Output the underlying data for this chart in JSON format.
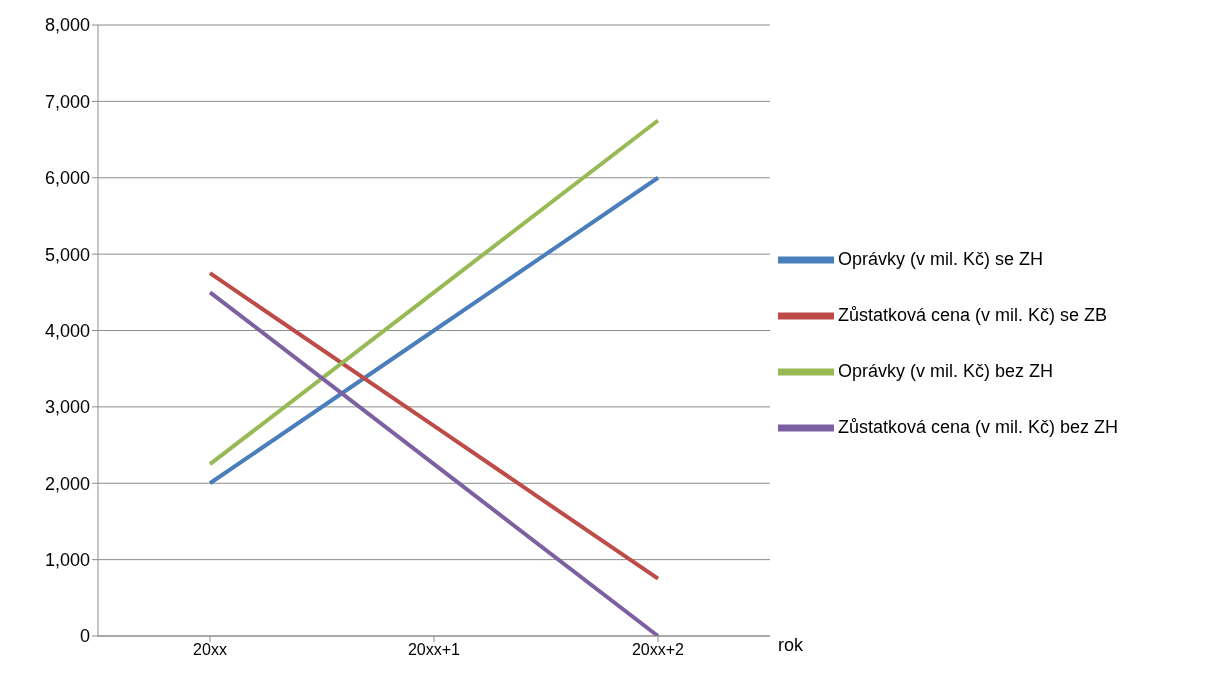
{
  "chart_data": {
    "type": "line",
    "xlabel": "rok",
    "categories": [
      "20xx",
      "20xx+1",
      "20xx+2"
    ],
    "series": [
      {
        "name": "Oprávky (v mil. Kč) se ZH",
        "color": "#4a7ebb",
        "values": [
          2000,
          4000,
          6000
        ]
      },
      {
        "name": "Zůstatková cena (v mil. Kč) se ZB",
        "color": "#be4b48",
        "values": [
          4750,
          2750,
          750
        ]
      },
      {
        "name": "Oprávky (v mil. Kč) bez ZH",
        "color": "#98b954",
        "values": [
          2250,
          4500,
          6750
        ]
      },
      {
        "name": "Zůstatková cena (v mil. Kč) bez ZH",
        "color": "#7d60a0",
        "values": [
          4500,
          2250,
          0
        ]
      }
    ],
    "ylim": [
      0,
      8000
    ],
    "yticks": [
      {
        "value": 0,
        "label": "0"
      },
      {
        "value": 1000,
        "label": "1,000"
      },
      {
        "value": 2000,
        "label": "2,000"
      },
      {
        "value": 3000,
        "label": "3,000"
      },
      {
        "value": 4000,
        "label": "4,000"
      },
      {
        "value": 5000,
        "label": "5,000"
      },
      {
        "value": 6000,
        "label": "6,000"
      },
      {
        "value": 7000,
        "label": "7,000"
      },
      {
        "value": 8000,
        "label": "8,000"
      }
    ],
    "grid": "y",
    "legend": "right",
    "marker": "none",
    "line_style": "solid"
  }
}
